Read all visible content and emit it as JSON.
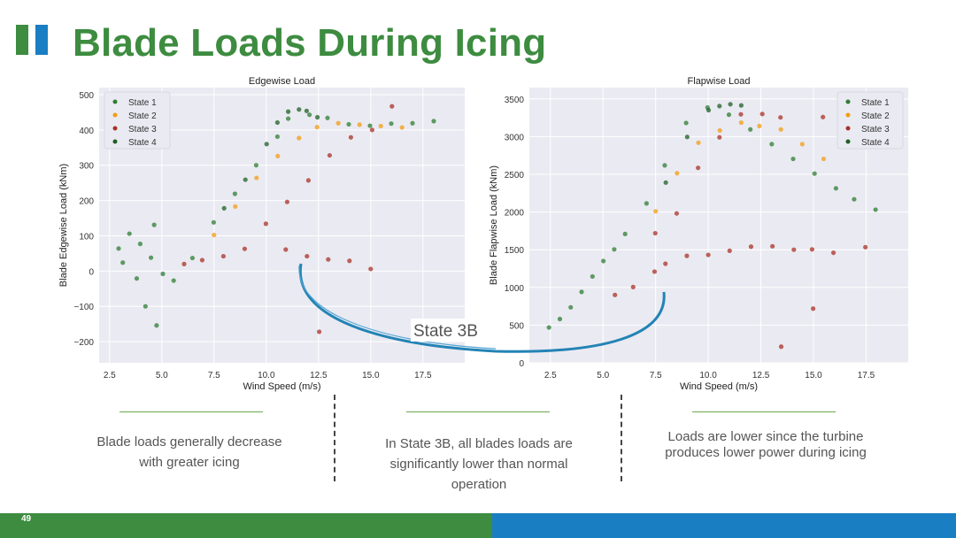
{
  "slide": {
    "title": "Blade Loads During Icing",
    "page_number": "49",
    "annotation_label": "State 3B",
    "captions": [
      "Blade loads generally decrease with greater icing",
      "In State 3B, all blades loads are significantly lower than normal operation",
      "Loads are lower since the turbine produces lower power during icing"
    ],
    "colors": {
      "title_green": "#3d8c40",
      "accent_blue": "#1a7ec2",
      "state1": "#2e7d32",
      "state2": "#f39c12",
      "state3": "#a93226",
      "state4": "#1e5f23"
    }
  },
  "chart_data": [
    {
      "type": "scatter",
      "title": "Edgewise Load",
      "xlabel": "Wind Speed (m/s)",
      "ylabel": "Blade Edgewise Load (kNm)",
      "xlim": [
        2,
        19.5
      ],
      "ylim": [
        -260,
        520
      ],
      "xticks": [
        "2.5",
        "5.0",
        "7.5",
        "10.0",
        "12.5",
        "15.0",
        "17.5"
      ],
      "xtick_values": [
        2.5,
        5.0,
        7.5,
        10.0,
        12.5,
        15.0,
        17.5
      ],
      "yticks": [
        "500",
        "400",
        "300",
        "200",
        "100",
        "0",
        "−100",
        "−200"
      ],
      "ytick_values": [
        500,
        400,
        300,
        200,
        100,
        0,
        -100,
        -200
      ],
      "legend": [
        "State 1",
        "State 2",
        "State 3",
        "State 4"
      ],
      "legend_position": "top-left",
      "series": [
        {
          "name": "State 1",
          "color": "#2e7d32",
          "points": [
            [
              3.0,
              60
            ],
            [
              3.5,
              110
            ],
            [
              4.0,
              80
            ],
            [
              4.5,
              40
            ],
            [
              3.8,
              -20
            ],
            [
              4.2,
              -100
            ],
            [
              4.6,
              130
            ],
            [
              5.0,
              -10
            ],
            [
              5.5,
              -30
            ],
            [
              3.2,
              20
            ],
            [
              4.8,
              -150
            ],
            [
              6.5,
              40
            ],
            [
              7.5,
              140
            ],
            [
              8.5,
              220
            ],
            [
              9.5,
              300
            ],
            [
              10.5,
              380
            ],
            [
              11.0,
              430
            ],
            [
              12.0,
              440
            ],
            [
              13.0,
              430
            ],
            [
              14.0,
              420
            ],
            [
              15.0,
              415
            ],
            [
              16.0,
              420
            ],
            [
              17.0,
              420
            ],
            [
              18.0,
              425
            ]
          ]
        },
        {
          "name": "State 2",
          "color": "#f39c12",
          "points": [
            [
              7.5,
              100
            ],
            [
              8.5,
              180
            ],
            [
              9.5,
              260
            ],
            [
              10.5,
              330
            ],
            [
              11.5,
              380
            ],
            [
              12.5,
              410
            ],
            [
              13.5,
              420
            ],
            [
              14.5,
              415
            ],
            [
              15.5,
              410
            ],
            [
              16.5,
              405
            ]
          ]
        },
        {
          "name": "State 3",
          "color": "#a93226",
          "points": [
            [
              6.0,
              20
            ],
            [
              7.0,
              30
            ],
            [
              8.0,
              40
            ],
            [
              9.0,
              60
            ],
            [
              10.0,
              130
            ],
            [
              11.0,
              200
            ],
            [
              12.0,
              260
            ],
            [
              13.0,
              330
            ],
            [
              14.0,
              380
            ],
            [
              15.0,
              400
            ],
            [
              11.0,
              60
            ],
            [
              12.0,
              40
            ],
            [
              13.0,
              30
            ],
            [
              14.0,
              25
            ],
            [
              15.0,
              10
            ],
            [
              16.0,
              470
            ],
            [
              12.5,
              -170
            ]
          ]
        },
        {
          "name": "State 4",
          "color": "#1e5f23",
          "points": [
            [
              8.0,
              180
            ],
            [
              9.0,
              260
            ],
            [
              10.0,
              360
            ],
            [
              10.5,
              420
            ],
            [
              11.0,
              450
            ],
            [
              11.5,
              455
            ],
            [
              12.0,
              450
            ],
            [
              12.5,
              440
            ]
          ]
        }
      ]
    },
    {
      "type": "scatter",
      "title": "Flapwise Load",
      "xlabel": "Wind Speed (m/s)",
      "ylabel": "Blade Flapwise Load (kNm)",
      "xlim": [
        1.5,
        19.5
      ],
      "ylim": [
        0,
        3650
      ],
      "xticks": [
        "2.5",
        "5.0",
        "7.5",
        "10.0",
        "12.5",
        "15.0",
        "17.5"
      ],
      "xtick_values": [
        2.5,
        5.0,
        7.5,
        10.0,
        12.5,
        15.0,
        17.5
      ],
      "yticks": [
        "3500",
        "3000",
        "2500",
        "2000",
        "1500",
        "1000",
        "500",
        "0"
      ],
      "ytick_values": [
        3500,
        3000,
        2500,
        2000,
        1500,
        1000,
        500,
        0
      ],
      "legend": [
        "State 1",
        "State 2",
        "State 3",
        "State 4"
      ],
      "legend_position": "top-right",
      "series": [
        {
          "name": "State 1",
          "color": "#2e7d32",
          "points": [
            [
              2.5,
              450
            ],
            [
              3.0,
              600
            ],
            [
              3.5,
              750
            ],
            [
              4.0,
              950
            ],
            [
              4.5,
              1150
            ],
            [
              5.0,
              1350
            ],
            [
              5.5,
              1500
            ],
            [
              6.0,
              1700
            ],
            [
              7.0,
              2100
            ],
            [
              8.0,
              2600
            ],
            [
              9.0,
              3200
            ],
            [
              10.0,
              3400
            ],
            [
              11.0,
              3300
            ],
            [
              12.0,
              3100
            ],
            [
              13.0,
              2900
            ],
            [
              14.0,
              2700
            ],
            [
              15.0,
              2500
            ],
            [
              16.0,
              2300
            ],
            [
              17.0,
              2150
            ],
            [
              18.0,
              2050
            ]
          ]
        },
        {
          "name": "State 2",
          "color": "#f39c12",
          "points": [
            [
              7.5,
              2000
            ],
            [
              8.5,
              2500
            ],
            [
              9.5,
              2900
            ],
            [
              10.5,
              3100
            ],
            [
              11.5,
              3200
            ],
            [
              12.5,
              3150
            ],
            [
              13.5,
              3100
            ],
            [
              14.5,
              2900
            ],
            [
              15.5,
              2700
            ]
          ]
        },
        {
          "name": "State 3",
          "color": "#a93226",
          "points": [
            [
              5.5,
              900
            ],
            [
              6.5,
              1000
            ],
            [
              7.5,
              1200
            ],
            [
              8.0,
              1300
            ],
            [
              9.0,
              1400
            ],
            [
              10.0,
              1450
            ],
            [
              11.0,
              1500
            ],
            [
              12.0,
              1550
            ],
            [
              13.0,
              1550
            ],
            [
              14.0,
              1500
            ],
            [
              15.0,
              1500
            ],
            [
              16.0,
              1450
            ],
            [
              17.5,
              1520
            ],
            [
              7.5,
              1700
            ],
            [
              8.5,
              2000
            ],
            [
              9.5,
              2600
            ],
            [
              10.5,
              3000
            ],
            [
              11.5,
              3300
            ],
            [
              12.5,
              3300
            ],
            [
              13.5,
              3250
            ],
            [
              15.5,
              3250
            ],
            [
              13.5,
              200
            ],
            [
              15.0,
              700
            ]
          ]
        },
        {
          "name": "State 4",
          "color": "#1e5f23",
          "points": [
            [
              8.0,
              2400
            ],
            [
              9.0,
              3000
            ],
            [
              10.0,
              3350
            ],
            [
              10.5,
              3400
            ],
            [
              11.0,
              3420
            ],
            [
              11.5,
              3400
            ]
          ]
        }
      ]
    }
  ]
}
